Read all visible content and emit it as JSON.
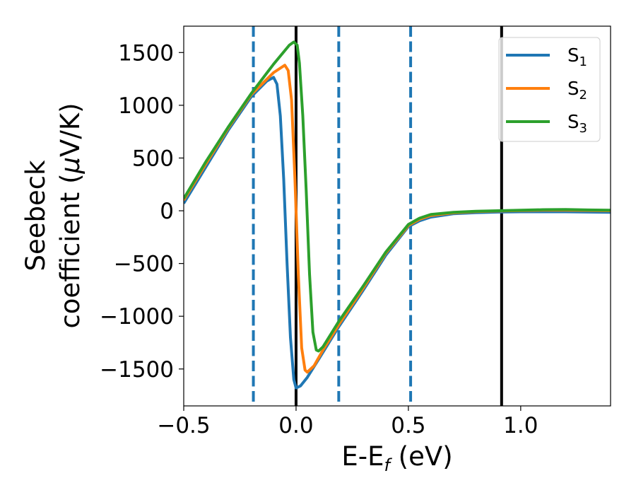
{
  "chart_data": {
    "type": "line",
    "xlabel": "E-E",
    "xlabel_sub": "f",
    "xlabel_unit": " (eV)",
    "ylabel_line1": "Seebeck",
    "ylabel_line2_a": "coefficient  (",
    "ylabel_mu": "μ",
    "ylabel_line2_b": "V/K)",
    "xlim": [
      -0.5,
      1.4
    ],
    "ylim": [
      -1850,
      1750
    ],
    "xticks": [
      -0.5,
      0.0,
      0.5,
      1.0
    ],
    "xtick_labels": [
      "−0.5",
      "0.0",
      "0.5",
      "1.0"
    ],
    "yticks": [
      -1500,
      -1000,
      -500,
      0,
      500,
      1000,
      1500
    ],
    "ytick_labels": [
      "−1500",
      "−1000",
      "−500",
      "0",
      "500",
      "1000",
      "1500"
    ],
    "grid": false,
    "legend_position": "top-right",
    "vlines": [
      {
        "x": -0.19,
        "style": "dashed",
        "color": "#1f77b4"
      },
      {
        "x": 0.0,
        "style": "solid",
        "color": "#000000"
      },
      {
        "x": 0.19,
        "style": "dashed",
        "color": "#1f77b4"
      },
      {
        "x": 0.51,
        "style": "dashed",
        "color": "#1f77b4"
      },
      {
        "x": 0.915,
        "style": "solid",
        "color": "#000000"
      }
    ],
    "series": [
      {
        "name": "S",
        "sub": "1",
        "color": "#1f77b4",
        "points": [
          [
            -0.5,
            70
          ],
          [
            -0.4,
            420
          ],
          [
            -0.3,
            770
          ],
          [
            -0.2,
            1080
          ],
          [
            -0.13,
            1230
          ],
          [
            -0.1,
            1265
          ],
          [
            -0.085,
            1200
          ],
          [
            -0.07,
            900
          ],
          [
            -0.055,
            300
          ],
          [
            -0.04,
            -500
          ],
          [
            -0.025,
            -1200
          ],
          [
            -0.01,
            -1600
          ],
          [
            0.0,
            -1680
          ],
          [
            0.02,
            -1660
          ],
          [
            0.05,
            -1580
          ],
          [
            0.1,
            -1410
          ],
          [
            0.19,
            -1100
          ],
          [
            0.3,
            -750
          ],
          [
            0.4,
            -420
          ],
          [
            0.5,
            -150
          ],
          [
            0.55,
            -95
          ],
          [
            0.6,
            -60
          ],
          [
            0.7,
            -28
          ],
          [
            0.8,
            -18
          ],
          [
            0.9,
            -12
          ],
          [
            1.0,
            -10
          ],
          [
            1.2,
            -10
          ],
          [
            1.4,
            -15
          ]
        ]
      },
      {
        "name": "S",
        "sub": "2",
        "color": "#ff7f0e",
        "points": [
          [
            -0.5,
            100
          ],
          [
            -0.4,
            450
          ],
          [
            -0.3,
            790
          ],
          [
            -0.2,
            1100
          ],
          [
            -0.1,
            1310
          ],
          [
            -0.05,
            1380
          ],
          [
            -0.035,
            1330
          ],
          [
            -0.02,
            1050
          ],
          [
            -0.005,
            300
          ],
          [
            0.01,
            -600
          ],
          [
            0.025,
            -1300
          ],
          [
            0.04,
            -1510
          ],
          [
            0.05,
            -1530
          ],
          [
            0.08,
            -1470
          ],
          [
            0.12,
            -1320
          ],
          [
            0.19,
            -1080
          ],
          [
            0.3,
            -730
          ],
          [
            0.4,
            -400
          ],
          [
            0.5,
            -140
          ],
          [
            0.55,
            -80
          ],
          [
            0.6,
            -45
          ],
          [
            0.7,
            -20
          ],
          [
            0.8,
            -8
          ],
          [
            0.9,
            -2
          ],
          [
            1.0,
            2
          ],
          [
            1.1,
            5
          ],
          [
            1.2,
            5
          ],
          [
            1.4,
            0
          ]
        ]
      },
      {
        "name": "S",
        "sub": "3",
        "color": "#2ca02c",
        "points": [
          [
            -0.5,
            115
          ],
          [
            -0.4,
            470
          ],
          [
            -0.3,
            800
          ],
          [
            -0.2,
            1110
          ],
          [
            -0.1,
            1390
          ],
          [
            -0.03,
            1570
          ],
          [
            -0.01,
            1600
          ],
          [
            0.005,
            1570
          ],
          [
            0.015,
            1400
          ],
          [
            0.03,
            900
          ],
          [
            0.045,
            200
          ],
          [
            0.06,
            -600
          ],
          [
            0.075,
            -1150
          ],
          [
            0.09,
            -1320
          ],
          [
            0.1,
            -1330
          ],
          [
            0.12,
            -1290
          ],
          [
            0.19,
            -1050
          ],
          [
            0.3,
            -710
          ],
          [
            0.4,
            -390
          ],
          [
            0.5,
            -130
          ],
          [
            0.55,
            -70
          ],
          [
            0.6,
            -35
          ],
          [
            0.7,
            -15
          ],
          [
            0.8,
            -5
          ],
          [
            0.9,
            0
          ],
          [
            1.0,
            5
          ],
          [
            1.1,
            10
          ],
          [
            1.2,
            12
          ],
          [
            1.3,
            8
          ],
          [
            1.4,
            5
          ]
        ]
      }
    ]
  }
}
